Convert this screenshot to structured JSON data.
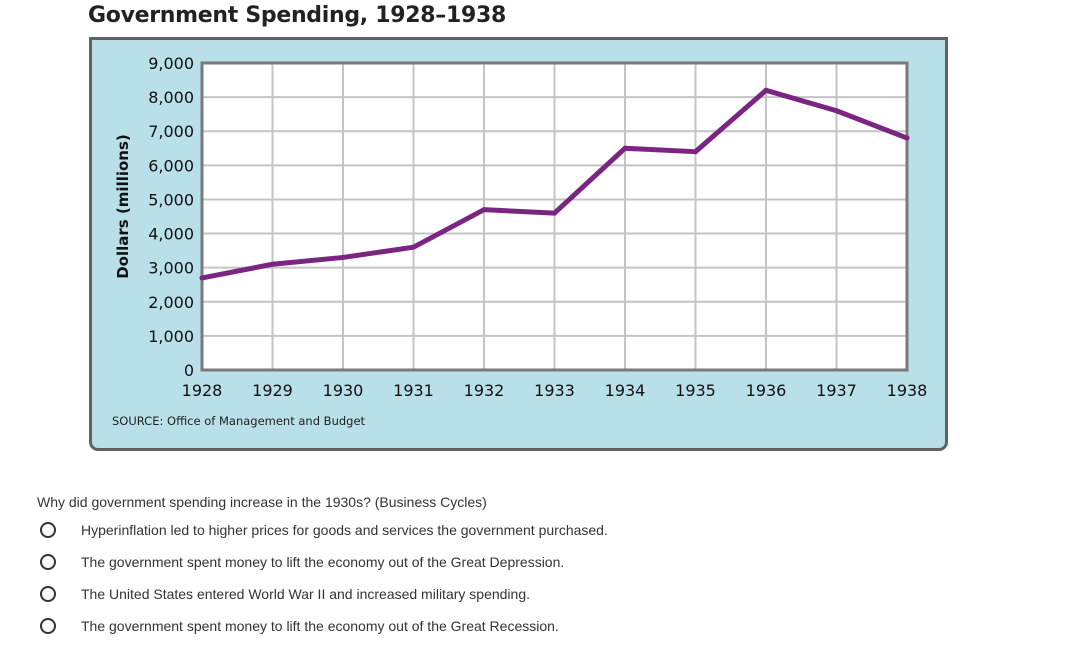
{
  "chart_data": {
    "type": "line",
    "title": "Government Spending, 1928–1938",
    "xlabel": "",
    "ylabel": "Dollars (millions)",
    "categories": [
      "1928",
      "1929",
      "1930",
      "1931",
      "1932",
      "1933",
      "1934",
      "1935",
      "1936",
      "1937",
      "1938"
    ],
    "series": [
      {
        "name": "Government Spending",
        "values": [
          2700,
          3100,
          3300,
          3600,
          4700,
          4600,
          6500,
          6400,
          8200,
          7600,
          6800
        ]
      }
    ],
    "ylim": [
      0,
      9000
    ],
    "yticks": [
      0,
      1000,
      2000,
      3000,
      4000,
      5000,
      6000,
      7000,
      8000,
      9000
    ],
    "ytick_labels": [
      "0",
      "1,000",
      "2,000",
      "3,000",
      "4,000",
      "5,000",
      "6,000",
      "7,000",
      "8,000",
      "9,000"
    ],
    "grid": true,
    "legend": "none",
    "source": "SOURCE: Office of Management and Budget",
    "colors": {
      "line": "#7b2583",
      "frame_bg": "#b9dfe9",
      "frame_border": "#5f6263",
      "grid": "#c4c4c4",
      "plot_bg": "#ffffff",
      "axis": "#7a7a7a"
    }
  },
  "quiz": {
    "question": "Why did government spending increase in the 1930s? (Business Cycles)",
    "options": [
      "Hyperinflation led to higher prices for goods and services the government purchased.",
      "The government spent money to lift the economy out of the Great Depression.",
      "The United States entered World War II and increased military spending.",
      "The government spent money to lift the economy out of the Great Recession."
    ]
  }
}
